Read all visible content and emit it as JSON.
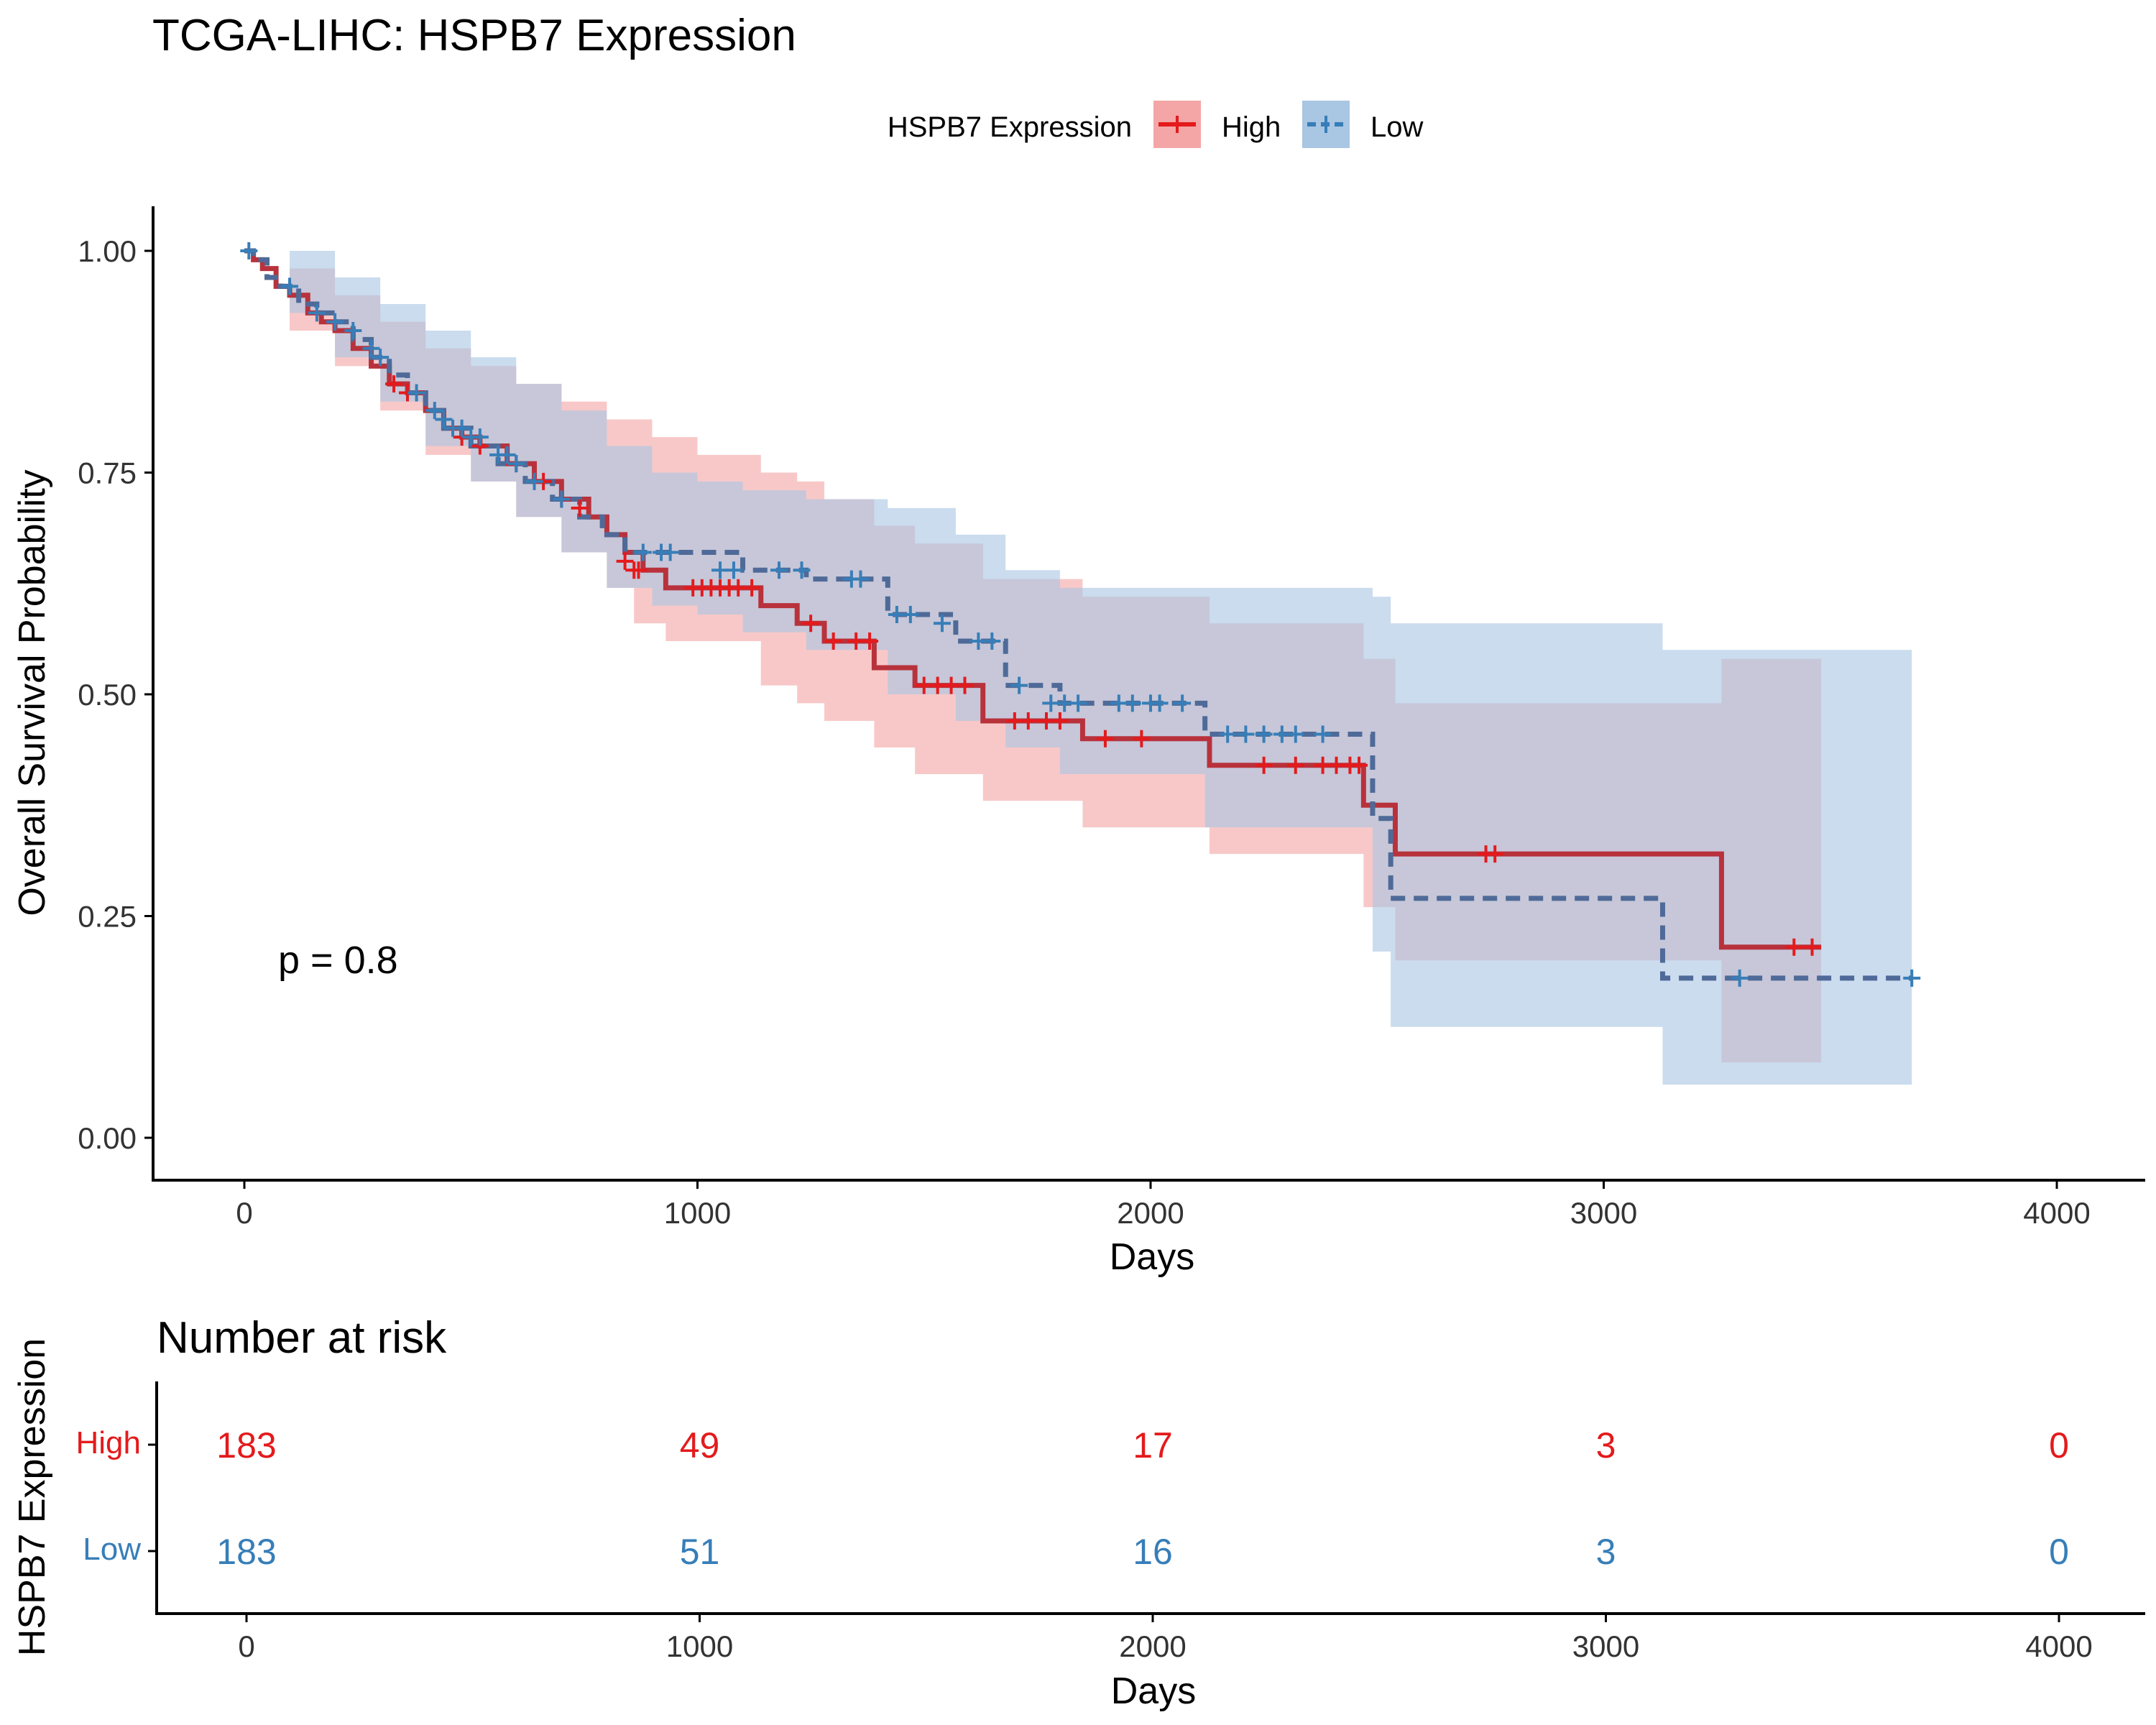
{
  "chart_data": {
    "type": "line",
    "subtype": "kaplan-meier",
    "title": "TCGA-LIHC: HSPB7 Expression",
    "xlabel": "Days",
    "ylabel": "Overall Survival Probability",
    "xlim": [
      -200,
      4200
    ],
    "ylim": [
      -0.05,
      1.05
    ],
    "xticks": [
      0,
      1000,
      2000,
      3000,
      4000
    ],
    "yticks": [
      "0.00",
      "0.25",
      "0.50",
      "0.75",
      "1.00"
    ],
    "legend": {
      "title": "HSPB7 Expression",
      "position": "top",
      "entries": [
        "High",
        "Low"
      ]
    },
    "pvalue_text": "p = 0.8",
    "colors": {
      "High": "#e41a1c",
      "Low": "#377eb8",
      "High_fill": "#f4a6a7",
      "Low_fill": "#a9c6e3",
      "overlap": "#b9a6b6"
    },
    "series": [
      {
        "name": "High",
        "style": "solid",
        "steps": [
          [
            0,
            1.0
          ],
          [
            20,
            0.99
          ],
          [
            40,
            0.98
          ],
          [
            70,
            0.96
          ],
          [
            100,
            0.95
          ],
          [
            140,
            0.93
          ],
          [
            170,
            0.92
          ],
          [
            200,
            0.91
          ],
          [
            240,
            0.89
          ],
          [
            280,
            0.87
          ],
          [
            320,
            0.85
          ],
          [
            360,
            0.84
          ],
          [
            400,
            0.82
          ],
          [
            440,
            0.8
          ],
          [
            480,
            0.79
          ],
          [
            520,
            0.78
          ],
          [
            580,
            0.76
          ],
          [
            640,
            0.74
          ],
          [
            700,
            0.72
          ],
          [
            760,
            0.7
          ],
          [
            800,
            0.68
          ],
          [
            840,
            0.66
          ],
          [
            880,
            0.64
          ],
          [
            930,
            0.62
          ],
          [
            1140,
            0.6
          ],
          [
            1220,
            0.58
          ],
          [
            1280,
            0.56
          ],
          [
            1390,
            0.53
          ],
          [
            1480,
            0.51
          ],
          [
            1630,
            0.47
          ],
          [
            1850,
            0.45
          ],
          [
            2130,
            0.42
          ],
          [
            2470,
            0.375
          ],
          [
            2540,
            0.32
          ],
          [
            3260,
            0.215
          ],
          [
            3480,
            0.215
          ]
        ],
        "upper": [
          [
            0,
            1.0
          ],
          [
            100,
            0.98
          ],
          [
            200,
            0.95
          ],
          [
            300,
            0.92
          ],
          [
            400,
            0.89
          ],
          [
            500,
            0.87
          ],
          [
            600,
            0.85
          ],
          [
            700,
            0.83
          ],
          [
            800,
            0.81
          ],
          [
            900,
            0.79
          ],
          [
            1000,
            0.77
          ],
          [
            1140,
            0.75
          ],
          [
            1220,
            0.74
          ],
          [
            1280,
            0.72
          ],
          [
            1390,
            0.69
          ],
          [
            1480,
            0.67
          ],
          [
            1630,
            0.63
          ],
          [
            1850,
            0.61
          ],
          [
            2130,
            0.58
          ],
          [
            2470,
            0.54
          ],
          [
            2540,
            0.49
          ],
          [
            3260,
            0.54
          ],
          [
            3480,
            0.54
          ]
        ],
        "lower": [
          [
            0,
            1.0
          ],
          [
            100,
            0.91
          ],
          [
            200,
            0.87
          ],
          [
            300,
            0.82
          ],
          [
            400,
            0.77
          ],
          [
            500,
            0.74
          ],
          [
            600,
            0.7
          ],
          [
            700,
            0.66
          ],
          [
            800,
            0.62
          ],
          [
            860,
            0.58
          ],
          [
            930,
            0.56
          ],
          [
            1140,
            0.51
          ],
          [
            1220,
            0.49
          ],
          [
            1280,
            0.47
          ],
          [
            1390,
            0.44
          ],
          [
            1480,
            0.41
          ],
          [
            1630,
            0.38
          ],
          [
            1850,
            0.35
          ],
          [
            2130,
            0.32
          ],
          [
            2470,
            0.26
          ],
          [
            2540,
            0.2
          ],
          [
            3260,
            0.085
          ],
          [
            3480,
            0.085
          ]
        ],
        "censored": [
          [
            330,
            0.85
          ],
          [
            360,
            0.84
          ],
          [
            480,
            0.79
          ],
          [
            520,
            0.78
          ],
          [
            600,
            0.76
          ],
          [
            660,
            0.74
          ],
          [
            700,
            0.72
          ],
          [
            740,
            0.71
          ],
          [
            840,
            0.65
          ],
          [
            860,
            0.64
          ],
          [
            870,
            0.64
          ],
          [
            990,
            0.62
          ],
          [
            1010,
            0.62
          ],
          [
            1030,
            0.62
          ],
          [
            1050,
            0.62
          ],
          [
            1070,
            0.62
          ],
          [
            1090,
            0.62
          ],
          [
            1120,
            0.62
          ],
          [
            1250,
            0.58
          ],
          [
            1300,
            0.56
          ],
          [
            1350,
            0.56
          ],
          [
            1380,
            0.56
          ],
          [
            1500,
            0.51
          ],
          [
            1530,
            0.51
          ],
          [
            1560,
            0.51
          ],
          [
            1590,
            0.51
          ],
          [
            1700,
            0.47
          ],
          [
            1730,
            0.47
          ],
          [
            1770,
            0.47
          ],
          [
            1800,
            0.47
          ],
          [
            1900,
            0.45
          ],
          [
            1980,
            0.45
          ],
          [
            2250,
            0.42
          ],
          [
            2320,
            0.42
          ],
          [
            2380,
            0.42
          ],
          [
            2410,
            0.42
          ],
          [
            2440,
            0.42
          ],
          [
            2460,
            0.42
          ],
          [
            2740,
            0.32
          ],
          [
            2760,
            0.32
          ],
          [
            3420,
            0.215
          ],
          [
            3460,
            0.215
          ]
        ]
      },
      {
        "name": "Low",
        "style": "dashed",
        "steps": [
          [
            0,
            1.0
          ],
          [
            20,
            0.99
          ],
          [
            50,
            0.97
          ],
          [
            80,
            0.96
          ],
          [
            120,
            0.94
          ],
          [
            160,
            0.93
          ],
          [
            200,
            0.92
          ],
          [
            240,
            0.9
          ],
          [
            280,
            0.88
          ],
          [
            320,
            0.86
          ],
          [
            360,
            0.84
          ],
          [
            400,
            0.82
          ],
          [
            440,
            0.8
          ],
          [
            500,
            0.78
          ],
          [
            560,
            0.76
          ],
          [
            620,
            0.74
          ],
          [
            680,
            0.72
          ],
          [
            740,
            0.7
          ],
          [
            790,
            0.68
          ],
          [
            840,
            0.66
          ],
          [
            1100,
            0.64
          ],
          [
            1240,
            0.63
          ],
          [
            1420,
            0.59
          ],
          [
            1570,
            0.56
          ],
          [
            1680,
            0.51
          ],
          [
            1800,
            0.49
          ],
          [
            2120,
            0.455
          ],
          [
            2490,
            0.36
          ],
          [
            2530,
            0.27
          ],
          [
            3130,
            0.18
          ],
          [
            3680,
            0.18
          ]
        ],
        "upper": [
          [
            0,
            1.0
          ],
          [
            100,
            1.0
          ],
          [
            200,
            0.97
          ],
          [
            300,
            0.94
          ],
          [
            400,
            0.91
          ],
          [
            500,
            0.88
          ],
          [
            600,
            0.85
          ],
          [
            700,
            0.82
          ],
          [
            800,
            0.78
          ],
          [
            900,
            0.75
          ],
          [
            1000,
            0.74
          ],
          [
            1100,
            0.73
          ],
          [
            1240,
            0.72
          ],
          [
            1420,
            0.71
          ],
          [
            1570,
            0.68
          ],
          [
            1680,
            0.64
          ],
          [
            1800,
            0.62
          ],
          [
            2120,
            0.62
          ],
          [
            2490,
            0.61
          ],
          [
            2530,
            0.58
          ],
          [
            3130,
            0.55
          ],
          [
            3680,
            0.55
          ]
        ],
        "lower": [
          [
            0,
            1.0
          ],
          [
            100,
            0.93
          ],
          [
            200,
            0.88
          ],
          [
            300,
            0.83
          ],
          [
            400,
            0.78
          ],
          [
            500,
            0.74
          ],
          [
            600,
            0.7
          ],
          [
            700,
            0.66
          ],
          [
            800,
            0.62
          ],
          [
            900,
            0.6
          ],
          [
            1000,
            0.59
          ],
          [
            1100,
            0.57
          ],
          [
            1240,
            0.55
          ],
          [
            1420,
            0.5
          ],
          [
            1570,
            0.47
          ],
          [
            1680,
            0.44
          ],
          [
            1800,
            0.41
          ],
          [
            2120,
            0.35
          ],
          [
            2490,
            0.21
          ],
          [
            2530,
            0.125
          ],
          [
            3130,
            0.06
          ],
          [
            3680,
            0.06
          ]
        ],
        "censored": [
          [
            10,
            1.0
          ],
          [
            100,
            0.96
          ],
          [
            160,
            0.93
          ],
          [
            200,
            0.92
          ],
          [
            240,
            0.91
          ],
          [
            280,
            0.89
          ],
          [
            300,
            0.88
          ],
          [
            380,
            0.84
          ],
          [
            420,
            0.82
          ],
          [
            440,
            0.81
          ],
          [
            460,
            0.8
          ],
          [
            480,
            0.8
          ],
          [
            500,
            0.79
          ],
          [
            520,
            0.79
          ],
          [
            560,
            0.77
          ],
          [
            580,
            0.77
          ],
          [
            600,
            0.76
          ],
          [
            640,
            0.74
          ],
          [
            700,
            0.72
          ],
          [
            880,
            0.66
          ],
          [
            920,
            0.66
          ],
          [
            940,
            0.66
          ],
          [
            1050,
            0.64
          ],
          [
            1080,
            0.64
          ],
          [
            1180,
            0.64
          ],
          [
            1230,
            0.64
          ],
          [
            1340,
            0.63
          ],
          [
            1360,
            0.63
          ],
          [
            1440,
            0.59
          ],
          [
            1470,
            0.59
          ],
          [
            1540,
            0.58
          ],
          [
            1620,
            0.56
          ],
          [
            1650,
            0.56
          ],
          [
            1710,
            0.51
          ],
          [
            1780,
            0.49
          ],
          [
            1810,
            0.49
          ],
          [
            1840,
            0.49
          ],
          [
            1930,
            0.49
          ],
          [
            1960,
            0.49
          ],
          [
            2000,
            0.49
          ],
          [
            2020,
            0.49
          ],
          [
            2070,
            0.49
          ],
          [
            2170,
            0.455
          ],
          [
            2210,
            0.455
          ],
          [
            2250,
            0.455
          ],
          [
            2290,
            0.455
          ],
          [
            2320,
            0.455
          ],
          [
            2380,
            0.455
          ],
          [
            3300,
            0.18
          ],
          [
            3680,
            0.18
          ]
        ]
      }
    ],
    "risk_table": {
      "title": "Number at risk",
      "ylabel": "HSPB7 Expression",
      "xlabel": "Days",
      "times": [
        0,
        1000,
        2000,
        3000,
        4000
      ],
      "rows": [
        {
          "name": "High",
          "values": [
            183,
            49,
            17,
            3,
            0
          ]
        },
        {
          "name": "Low",
          "values": [
            183,
            51,
            16,
            3,
            0
          ]
        }
      ]
    }
  }
}
